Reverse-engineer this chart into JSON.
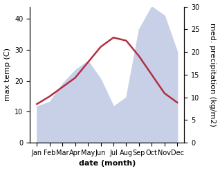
{
  "months": [
    "Jan",
    "Feb",
    "Mar",
    "Apr",
    "May",
    "Jun",
    "Jul",
    "Aug",
    "Sep",
    "Oct",
    "Nov",
    "Dec"
  ],
  "month_indices": [
    0,
    1,
    2,
    3,
    4,
    5,
    6,
    7,
    8,
    9,
    10,
    11
  ],
  "max_temp": [
    12.5,
    15,
    18,
    21,
    26,
    31,
    34,
    33,
    28,
    22,
    16,
    13
  ],
  "precipitation": [
    8,
    9,
    13,
    16,
    18,
    14,
    8,
    10,
    25,
    30,
    28,
    20
  ],
  "temp_color": "#b03040",
  "precip_fill_color": "#c8d0e8",
  "temp_ylim": [
    0,
    44
  ],
  "precip_ylim": [
    0,
    30
  ],
  "temp_yticks": [
    0,
    10,
    20,
    30,
    40
  ],
  "precip_yticks": [
    0,
    5,
    10,
    15,
    20,
    25,
    30
  ],
  "xlabel": "date (month)",
  "ylabel_left": "max temp (C)",
  "ylabel_right": "med. precipitation (kg/m2)",
  "label_fontsize": 8,
  "tick_fontsize": 7
}
